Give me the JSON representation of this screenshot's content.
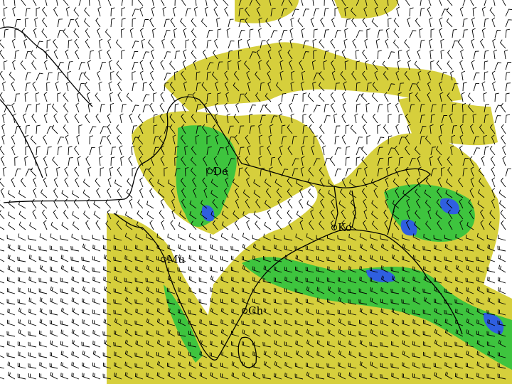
{
  "colors": {
    "background": "#ffffff",
    "light_rain": "#d6cf3c",
    "moderate_rain": "#3ec43e",
    "heavy_rain": "#2f5fe0",
    "barb": "#000000",
    "coastline": "#000000"
  },
  "cities": [
    {
      "label": "De"
    },
    {
      "label": "Mu"
    },
    {
      "label": "Ch"
    },
    {
      "label": "Ko"
    }
  ],
  "wind_barbs": {
    "icon": "wind-barb-icon"
  }
}
